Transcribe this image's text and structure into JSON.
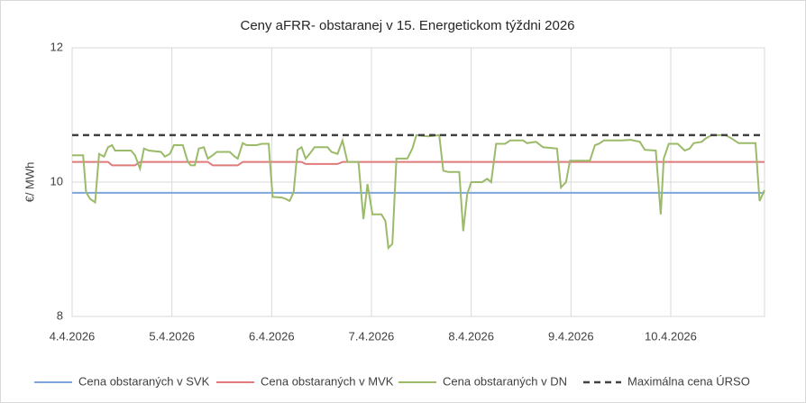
{
  "chart_data": {
    "type": "line",
    "title": "Ceny aFRR- obstaranej v 15. Energetickom týždni 2026",
    "y_label": "€/ MWh",
    "xlim": [
      0,
      6.94
    ],
    "xticks": [
      {
        "value": 0,
        "label": "4.4.2026"
      },
      {
        "value": 1,
        "label": "5.4.2026"
      },
      {
        "value": 2,
        "label": "6.4.2026"
      },
      {
        "value": 3,
        "label": "7.4.2026"
      },
      {
        "value": 4,
        "label": "8.4.2026"
      },
      {
        "value": 5,
        "label": "9.4.2026"
      },
      {
        "value": 6,
        "label": "10.4.2026"
      }
    ],
    "ylim": [
      8,
      12
    ],
    "yticks": [
      8,
      10,
      12
    ],
    "grid": true,
    "legend": "bottom",
    "series": [
      {
        "name": "Cena obstaraných v SVK",
        "color": "#7ea6dc",
        "dashed": false,
        "x": [
          0,
          6.94
        ],
        "values": [
          9.84,
          9.84
        ]
      },
      {
        "name": "Cena obstaraných v MVK",
        "color": "#e07b7b",
        "dashed": false,
        "x": [
          0,
          0.36,
          0.4,
          0.63,
          0.68,
          1.36,
          1.41,
          1.66,
          1.71,
          2.3,
          2.34,
          2.66,
          2.71,
          6.94
        ],
        "values": [
          10.3,
          10.3,
          10.25,
          10.25,
          10.3,
          10.3,
          10.25,
          10.25,
          10.3,
          10.3,
          10.27,
          10.27,
          10.3,
          10.3
        ]
      },
      {
        "name": "Cena obstaraných v DN",
        "color": "#9bbb6a",
        "dashed": false,
        "x": [
          0,
          0.11,
          0.14,
          0.18,
          0.23,
          0.27,
          0.32,
          0.36,
          0.4,
          0.43,
          0.59,
          0.63,
          0.68,
          0.72,
          0.77,
          0.89,
          0.93,
          0.98,
          1.02,
          1.11,
          1.16,
          1.19,
          1.23,
          1.27,
          1.32,
          1.36,
          1.41,
          1.45,
          1.58,
          1.63,
          1.66,
          1.71,
          1.75,
          1.85,
          1.9,
          1.97,
          2.01,
          2.1,
          2.14,
          2.18,
          2.22,
          2.26,
          2.3,
          2.34,
          2.38,
          2.43,
          2.56,
          2.6,
          2.66,
          2.71,
          2.76,
          2.87,
          2.92,
          2.96,
          3.01,
          3.1,
          3.14,
          3.17,
          3.21,
          3.25,
          3.36,
          3.41,
          3.45,
          3.57,
          3.68,
          3.72,
          3.77,
          3.88,
          3.92,
          3.96,
          4.0,
          4.11,
          4.16,
          4.2,
          4.25,
          4.34,
          4.39,
          4.52,
          4.56,
          4.65,
          4.72,
          4.86,
          4.9,
          4.95,
          4.99,
          5.19,
          5.24,
          5.28,
          5.33,
          5.51,
          5.6,
          5.69,
          5.74,
          5.85,
          5.9,
          5.93,
          5.98,
          6.07,
          6.14,
          6.19,
          6.23,
          6.31,
          6.35,
          6.41,
          6.55,
          6.61,
          6.68,
          6.85,
          6.89,
          6.94
        ],
        "values": [
          10.4,
          10.4,
          9.85,
          9.75,
          9.7,
          10.42,
          10.38,
          10.52,
          10.55,
          10.47,
          10.47,
          10.4,
          10.2,
          10.5,
          10.47,
          10.45,
          10.38,
          10.42,
          10.55,
          10.55,
          10.3,
          10.25,
          10.25,
          10.5,
          10.52,
          10.35,
          10.4,
          10.45,
          10.45,
          10.38,
          10.35,
          10.58,
          10.55,
          10.55,
          10.57,
          10.57,
          9.78,
          9.77,
          9.75,
          9.72,
          9.85,
          10.48,
          10.52,
          10.35,
          10.42,
          10.52,
          10.52,
          10.45,
          10.42,
          10.62,
          10.3,
          10.3,
          9.45,
          9.97,
          9.52,
          9.52,
          9.42,
          9.02,
          9.08,
          10.35,
          10.35,
          10.5,
          10.7,
          10.68,
          10.7,
          10.17,
          10.15,
          10.15,
          9.27,
          9.82,
          10.0,
          10.0,
          10.05,
          10.0,
          10.57,
          10.57,
          10.62,
          10.62,
          10.58,
          10.6,
          10.52,
          10.5,
          9.92,
          10.0,
          10.32,
          10.32,
          10.55,
          10.57,
          10.62,
          10.62,
          10.63,
          10.6,
          10.48,
          10.47,
          9.52,
          10.35,
          10.57,
          10.57,
          10.47,
          10.5,
          10.58,
          10.6,
          10.65,
          10.7,
          10.7,
          10.65,
          10.58,
          10.58,
          9.72,
          9.88
        ]
      },
      {
        "name": "Maximálna cena ÚRSO",
        "color": "#404040",
        "dashed": true,
        "x": [
          0,
          6.94
        ],
        "values": [
          10.7,
          10.7
        ]
      }
    ]
  }
}
